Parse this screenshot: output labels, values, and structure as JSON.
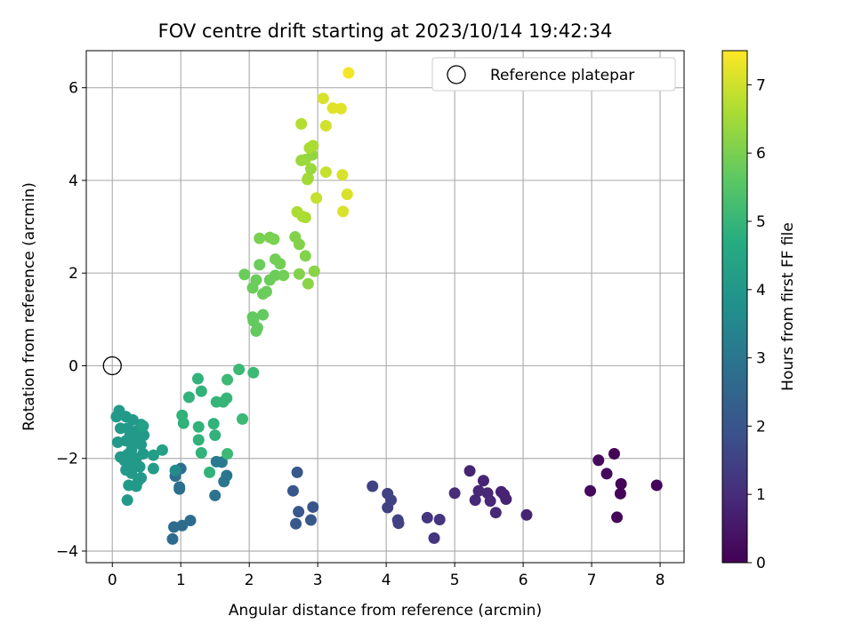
{
  "chart_data": {
    "type": "scatter",
    "title": "FOV centre drift starting at 2023/10/14 19:42:34",
    "xlabel": "Angular distance from reference (arcmin)",
    "ylabel": "Rotation from reference (arcmin)",
    "xlim": [
      -0.38,
      8.35
    ],
    "ylim": [
      -4.25,
      6.8
    ],
    "xticks": [
      0,
      1,
      2,
      3,
      4,
      5,
      6,
      7,
      8
    ],
    "yticks": [
      -4,
      -2,
      0,
      2,
      4,
      6
    ],
    "grid": true,
    "legend": {
      "location": "upper right",
      "entries": [
        "Reference platepar"
      ]
    },
    "reference_point": {
      "x": 0,
      "y": 0
    },
    "colorbar": {
      "label": "Hours from first FF file",
      "colormap": "viridis",
      "range": [
        0,
        7.5
      ],
      "ticks": [
        0,
        1,
        2,
        3,
        4,
        5,
        6,
        7
      ]
    },
    "series": [
      {
        "points": [
          {
            "x": 7.95,
            "y": -2.58,
            "c": 0.1
          },
          {
            "x": 7.33,
            "y": -1.9,
            "c": 0.1
          },
          {
            "x": 7.1,
            "y": -2.04,
            "c": 0.2
          },
          {
            "x": 7.22,
            "y": -2.33,
            "c": 0.2
          },
          {
            "x": 6.98,
            "y": -2.7,
            "c": 0.2
          },
          {
            "x": 7.43,
            "y": -2.55,
            "c": 0.1
          },
          {
            "x": 7.42,
            "y": -2.76,
            "c": 0.1
          },
          {
            "x": 7.37,
            "y": -3.27,
            "c": 0.1
          },
          {
            "x": 5.22,
            "y": -2.27,
            "c": 0.8
          },
          {
            "x": 5.42,
            "y": -2.48,
            "c": 0.8
          },
          {
            "x": 5.35,
            "y": -2.7,
            "c": 0.9
          },
          {
            "x": 5.48,
            "y": -2.75,
            "c": 0.9
          },
          {
            "x": 5.3,
            "y": -2.9,
            "c": 0.9
          },
          {
            "x": 5.52,
            "y": -2.92,
            "c": 0.9
          },
          {
            "x": 5.6,
            "y": -3.17,
            "c": 0.9
          },
          {
            "x": 5.68,
            "y": -2.72,
            "c": 0.8
          },
          {
            "x": 5.72,
            "y": -2.78,
            "c": 0.8
          },
          {
            "x": 5.75,
            "y": -2.88,
            "c": 0.8
          },
          {
            "x": 5.0,
            "y": -2.75,
            "c": 1.0
          },
          {
            "x": 6.05,
            "y": -3.22,
            "c": 0.8
          },
          {
            "x": 4.6,
            "y": -3.28,
            "c": 1.2
          },
          {
            "x": 4.78,
            "y": -3.32,
            "c": 1.2
          },
          {
            "x": 4.7,
            "y": -3.72,
            "c": 1.2
          },
          {
            "x": 3.8,
            "y": -2.6,
            "c": 1.5
          },
          {
            "x": 4.02,
            "y": -2.76,
            "c": 1.5
          },
          {
            "x": 4.07,
            "y": -2.9,
            "c": 1.5
          },
          {
            "x": 4.02,
            "y": -3.06,
            "c": 1.5
          },
          {
            "x": 4.17,
            "y": -3.33,
            "c": 1.5
          },
          {
            "x": 4.18,
            "y": -3.4,
            "c": 1.5
          },
          {
            "x": 2.7,
            "y": -2.3,
            "c": 2.1
          },
          {
            "x": 2.64,
            "y": -2.7,
            "c": 2.1
          },
          {
            "x": 2.93,
            "y": -3.05,
            "c": 2.0
          },
          {
            "x": 2.72,
            "y": -3.15,
            "c": 2.1
          },
          {
            "x": 2.9,
            "y": -3.33,
            "c": 2.1
          },
          {
            "x": 2.68,
            "y": -3.41,
            "c": 2.1
          },
          {
            "x": 1.0,
            "y": -2.22,
            "c": 2.8
          },
          {
            "x": 0.92,
            "y": -2.38,
            "c": 2.8
          },
          {
            "x": 0.98,
            "y": -2.62,
            "c": 2.8
          },
          {
            "x": 0.98,
            "y": -2.66,
            "c": 2.8
          },
          {
            "x": 1.14,
            "y": -3.34,
            "c": 2.7
          },
          {
            "x": 0.9,
            "y": -3.48,
            "c": 2.7
          },
          {
            "x": 1.02,
            "y": -3.45,
            "c": 2.7
          },
          {
            "x": 0.88,
            "y": -3.74,
            "c": 2.7
          },
          {
            "x": 1.5,
            "y": -2.8,
            "c": 2.9
          },
          {
            "x": 1.63,
            "y": -2.5,
            "c": 3.0
          },
          {
            "x": 1.67,
            "y": -2.37,
            "c": 3.0
          },
          {
            "x": 1.52,
            "y": -2.07,
            "c": 3.1
          },
          {
            "x": 1.6,
            "y": -2.08,
            "c": 3.1
          },
          {
            "x": 0.92,
            "y": -2.26,
            "c": 3.6
          },
          {
            "x": 0.1,
            "y": -0.97,
            "c": 4.1
          },
          {
            "x": 0.06,
            "y": -1.1,
            "c": 4.1
          },
          {
            "x": 0.2,
            "y": -1.1,
            "c": 4.1
          },
          {
            "x": 0.3,
            "y": -1.17,
            "c": 4.1
          },
          {
            "x": 0.42,
            "y": -1.27,
            "c": 4.1
          },
          {
            "x": 0.12,
            "y": -1.35,
            "c": 4.1
          },
          {
            "x": 0.22,
            "y": -1.35,
            "c": 4.1
          },
          {
            "x": 0.33,
            "y": -1.42,
            "c": 4.1
          },
          {
            "x": 0.26,
            "y": -1.5,
            "c": 4.1
          },
          {
            "x": 0.38,
            "y": -1.52,
            "c": 4.1
          },
          {
            "x": 0.46,
            "y": -1.5,
            "c": 4.1
          },
          {
            "x": 0.08,
            "y": -1.65,
            "c": 4.1
          },
          {
            "x": 0.2,
            "y": -1.62,
            "c": 4.1
          },
          {
            "x": 0.32,
            "y": -1.68,
            "c": 4.1
          },
          {
            "x": 0.42,
            "y": -1.7,
            "c": 4.1
          },
          {
            "x": 0.28,
            "y": -1.82,
            "c": 4.1
          },
          {
            "x": 0.22,
            "y": -1.92,
            "c": 4.1
          },
          {
            "x": 0.12,
            "y": -1.97,
            "c": 4.1
          },
          {
            "x": 0.18,
            "y": -2.05,
            "c": 4.1
          },
          {
            "x": 0.35,
            "y": -2.0,
            "c": 4.1
          },
          {
            "x": 0.45,
            "y": -1.9,
            "c": 4.1
          },
          {
            "x": 0.3,
            "y": -2.12,
            "c": 4.1
          },
          {
            "x": 0.4,
            "y": -2.18,
            "c": 4.1
          },
          {
            "x": 0.2,
            "y": -2.25,
            "c": 4.1
          },
          {
            "x": 0.28,
            "y": -2.32,
            "c": 4.1
          },
          {
            "x": 0.42,
            "y": -2.42,
            "c": 4.1
          },
          {
            "x": 0.38,
            "y": -2.48,
            "c": 4.1
          },
          {
            "x": 0.24,
            "y": -2.58,
            "c": 4.1
          },
          {
            "x": 0.35,
            "y": -2.6,
            "c": 4.1
          },
          {
            "x": 0.22,
            "y": -2.9,
            "c": 4.1
          },
          {
            "x": 0.6,
            "y": -1.93,
            "c": 4.2
          },
          {
            "x": 0.6,
            "y": -2.22,
            "c": 4.2
          },
          {
            "x": 0.73,
            "y": -1.82,
            "c": 4.3
          },
          {
            "x": 0.45,
            "y": -1.3,
            "c": 4.3
          },
          {
            "x": 1.25,
            "y": -0.28,
            "c": 4.9
          },
          {
            "x": 1.3,
            "y": -0.55,
            "c": 4.9
          },
          {
            "x": 1.12,
            "y": -0.68,
            "c": 4.9
          },
          {
            "x": 1.02,
            "y": -1.07,
            "c": 4.9
          },
          {
            "x": 1.04,
            "y": -1.24,
            "c": 4.9
          },
          {
            "x": 1.26,
            "y": -1.32,
            "c": 4.9
          },
          {
            "x": 1.26,
            "y": -1.6,
            "c": 4.9
          },
          {
            "x": 1.3,
            "y": -1.88,
            "c": 4.9
          },
          {
            "x": 1.42,
            "y": -2.3,
            "c": 4.9
          },
          {
            "x": 1.48,
            "y": -1.25,
            "c": 4.9
          },
          {
            "x": 1.5,
            "y": -1.5,
            "c": 4.9
          },
          {
            "x": 1.52,
            "y": -0.78,
            "c": 5.0
          },
          {
            "x": 1.62,
            "y": -0.78,
            "c": 5.0
          },
          {
            "x": 1.67,
            "y": -0.7,
            "c": 5.0
          },
          {
            "x": 1.68,
            "y": -0.3,
            "c": 5.1
          },
          {
            "x": 1.85,
            "y": -0.08,
            "c": 5.1
          },
          {
            "x": 2.06,
            "y": -0.15,
            "c": 5.1
          },
          {
            "x": 1.9,
            "y": -1.15,
            "c": 5.1
          },
          {
            "x": 1.68,
            "y": -1.9,
            "c": 5.1
          },
          {
            "x": 2.06,
            "y": 0.97,
            "c": 5.7
          },
          {
            "x": 2.1,
            "y": 0.75,
            "c": 5.7
          },
          {
            "x": 2.12,
            "y": 0.82,
            "c": 5.7
          },
          {
            "x": 2.05,
            "y": 1.05,
            "c": 5.7
          },
          {
            "x": 2.2,
            "y": 1.1,
            "c": 5.7
          },
          {
            "x": 2.05,
            "y": 1.68,
            "c": 5.8
          },
          {
            "x": 2.1,
            "y": 1.85,
            "c": 5.8
          },
          {
            "x": 2.2,
            "y": 1.55,
            "c": 5.8
          },
          {
            "x": 2.25,
            "y": 1.6,
            "c": 5.8
          },
          {
            "x": 2.3,
            "y": 1.85,
            "c": 5.8
          },
          {
            "x": 2.38,
            "y": 1.95,
            "c": 5.8
          },
          {
            "x": 1.93,
            "y": 1.97,
            "c": 5.8
          },
          {
            "x": 2.15,
            "y": 2.18,
            "c": 5.8
          },
          {
            "x": 2.38,
            "y": 2.3,
            "c": 5.9
          },
          {
            "x": 2.45,
            "y": 2.2,
            "c": 5.9
          },
          {
            "x": 2.5,
            "y": 1.95,
            "c": 5.9
          },
          {
            "x": 2.15,
            "y": 2.75,
            "c": 6.0
          },
          {
            "x": 2.3,
            "y": 2.77,
            "c": 6.0
          },
          {
            "x": 2.36,
            "y": 2.73,
            "c": 6.0
          },
          {
            "x": 2.67,
            "y": 2.78,
            "c": 6.1
          },
          {
            "x": 2.73,
            "y": 2.62,
            "c": 6.1
          },
          {
            "x": 2.82,
            "y": 2.37,
            "c": 6.1
          },
          {
            "x": 2.73,
            "y": 1.98,
            "c": 6.1
          },
          {
            "x": 2.86,
            "y": 1.77,
            "c": 6.2
          },
          {
            "x": 2.95,
            "y": 2.04,
            "c": 6.2
          },
          {
            "x": 2.7,
            "y": 3.32,
            "c": 6.6
          },
          {
            "x": 2.78,
            "y": 3.22,
            "c": 6.6
          },
          {
            "x": 2.82,
            "y": 3.2,
            "c": 6.6
          },
          {
            "x": 2.85,
            "y": 4.02,
            "c": 6.5
          },
          {
            "x": 2.86,
            "y": 4.05,
            "c": 6.5
          },
          {
            "x": 2.76,
            "y": 4.43,
            "c": 6.4
          },
          {
            "x": 2.82,
            "y": 4.45,
            "c": 6.4
          },
          {
            "x": 2.9,
            "y": 4.25,
            "c": 6.4
          },
          {
            "x": 2.92,
            "y": 4.55,
            "c": 6.3
          },
          {
            "x": 2.88,
            "y": 4.7,
            "c": 6.6
          },
          {
            "x": 2.93,
            "y": 4.75,
            "c": 6.6
          },
          {
            "x": 2.76,
            "y": 5.22,
            "c": 6.7
          },
          {
            "x": 2.98,
            "y": 3.62,
            "c": 6.9
          },
          {
            "x": 3.12,
            "y": 4.18,
            "c": 6.9
          },
          {
            "x": 3.36,
            "y": 4.12,
            "c": 7.1
          },
          {
            "x": 3.37,
            "y": 3.33,
            "c": 7.1
          },
          {
            "x": 3.43,
            "y": 3.7,
            "c": 7.1
          },
          {
            "x": 3.12,
            "y": 5.18,
            "c": 7.0
          },
          {
            "x": 3.08,
            "y": 5.77,
            "c": 7.1
          },
          {
            "x": 3.22,
            "y": 5.56,
            "c": 7.2
          },
          {
            "x": 3.34,
            "y": 5.55,
            "c": 7.2
          },
          {
            "x": 3.45,
            "y": 6.32,
            "c": 7.4
          }
        ]
      }
    ]
  }
}
